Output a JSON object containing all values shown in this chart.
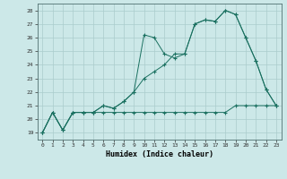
{
  "xlabel": "Humidex (Indice chaleur)",
  "bg_color": "#cce8e8",
  "grid_color": "#aacccc",
  "line_color": "#1a7060",
  "xlim": [
    -0.5,
    23.5
  ],
  "ylim": [
    18.5,
    28.5
  ],
  "yticks": [
    19,
    20,
    21,
    22,
    23,
    24,
    25,
    26,
    27,
    28
  ],
  "xticks": [
    0,
    1,
    2,
    3,
    4,
    5,
    6,
    7,
    8,
    9,
    10,
    11,
    12,
    13,
    14,
    15,
    16,
    17,
    18,
    19,
    20,
    21,
    22,
    23
  ],
  "series1_x": [
    0,
    1,
    2,
    3,
    4,
    5,
    6,
    7,
    8,
    9,
    10,
    11,
    12,
    13,
    14,
    15,
    16,
    17,
    18,
    19,
    20,
    21,
    22,
    23
  ],
  "series1_y": [
    19.0,
    20.5,
    19.2,
    20.5,
    20.5,
    20.5,
    20.5,
    20.5,
    20.5,
    20.5,
    20.5,
    20.5,
    20.5,
    20.5,
    20.5,
    20.5,
    20.5,
    20.5,
    20.5,
    21.0,
    21.0,
    21.0,
    21.0,
    21.0
  ],
  "series2_x": [
    0,
    1,
    2,
    3,
    4,
    5,
    6,
    7,
    8,
    9,
    10,
    11,
    12,
    13,
    14,
    15,
    16,
    17,
    18,
    19,
    20,
    21,
    22,
    23
  ],
  "series2_y": [
    19.0,
    20.5,
    19.2,
    20.5,
    20.5,
    20.5,
    21.0,
    20.8,
    21.3,
    22.0,
    23.0,
    23.5,
    24.0,
    24.8,
    24.8,
    27.0,
    27.3,
    27.2,
    28.0,
    27.7,
    26.0,
    24.3,
    22.2,
    21.0
  ],
  "series3_x": [
    0,
    1,
    2,
    3,
    4,
    5,
    6,
    7,
    8,
    9,
    10,
    11,
    12,
    13,
    14,
    15,
    16,
    17,
    18,
    19,
    20,
    21,
    22,
    23
  ],
  "series3_y": [
    19.0,
    20.5,
    19.2,
    20.5,
    20.5,
    20.5,
    21.0,
    20.8,
    21.3,
    22.0,
    26.2,
    26.0,
    24.8,
    24.5,
    24.8,
    27.0,
    27.3,
    27.2,
    28.0,
    27.7,
    26.0,
    24.3,
    22.2,
    21.0
  ]
}
